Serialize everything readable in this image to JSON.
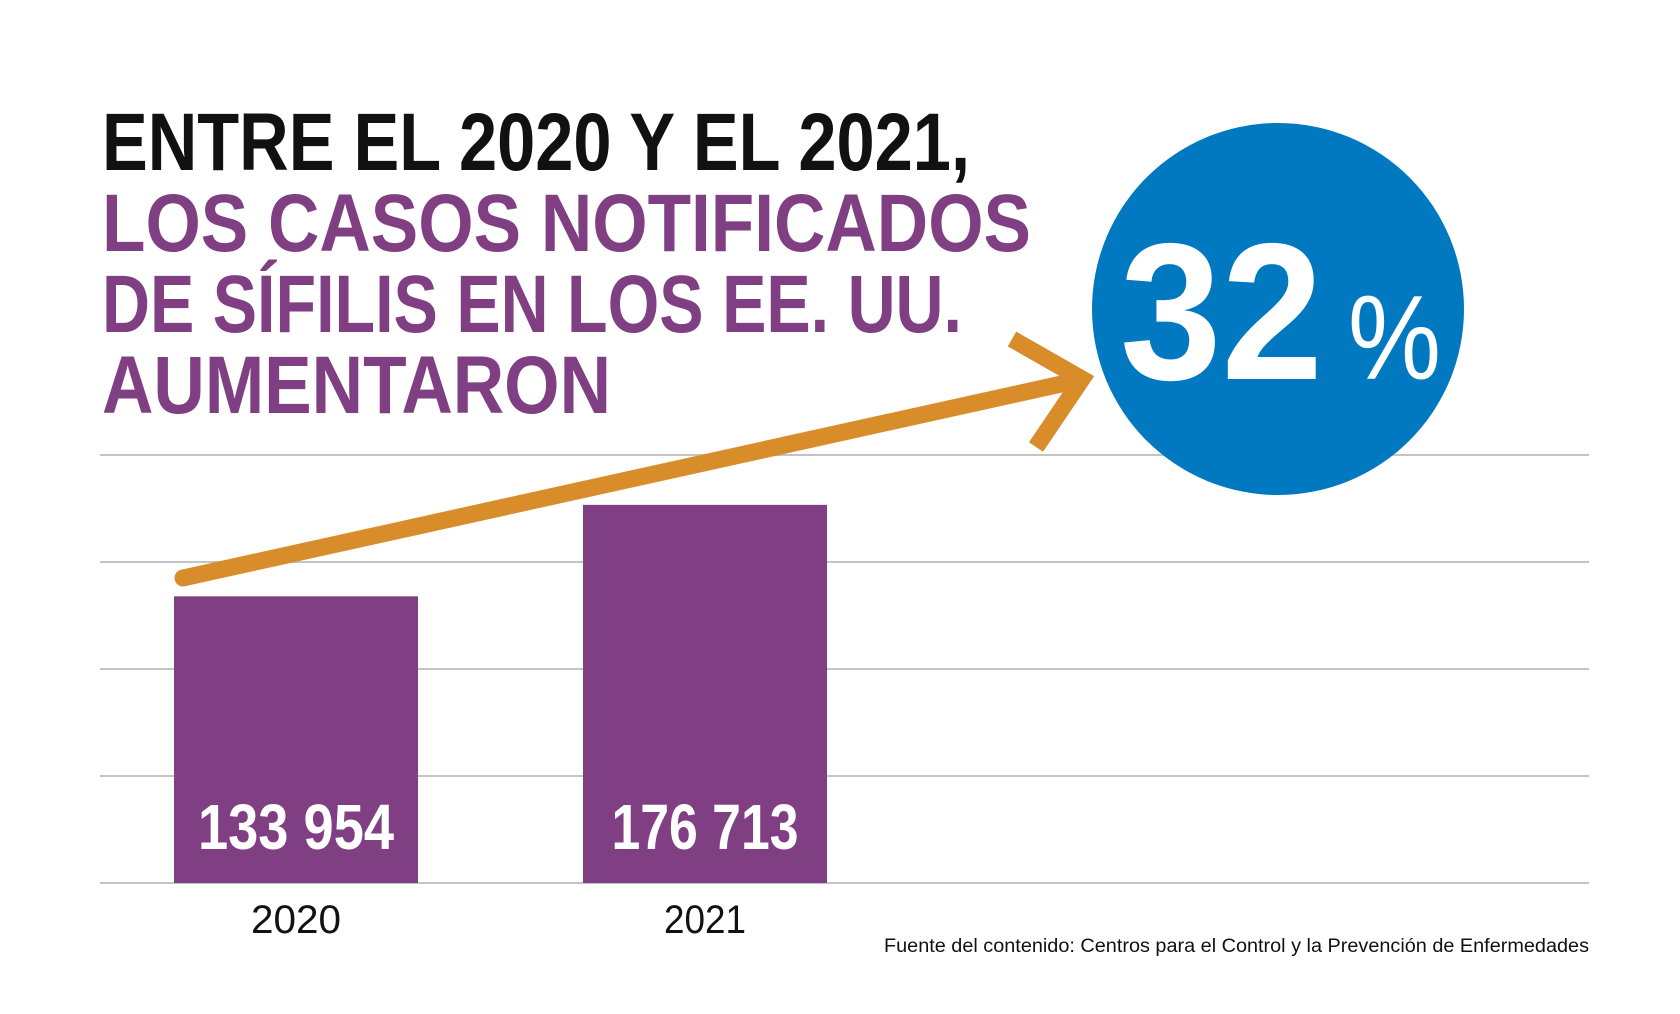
{
  "title": {
    "lines": [
      "ENTRE EL 2020 Y EL 2021,",
      "LOS CASOS NOTIFICADOS",
      "DE SÍFILIS EN LOS EE. UU.",
      "AUMENTARON"
    ],
    "line_colors": [
      "#111111",
      "#7f3f82",
      "#7f3f82",
      "#7f3f82"
    ]
  },
  "callout": {
    "number": "32",
    "unit": "%",
    "color": "#0079c1"
  },
  "source": "Fuente del contenido: Centros para el Control y la Prevención de Enfermedades",
  "chart_data": {
    "type": "bar",
    "categories": [
      "2020",
      "2021"
    ],
    "values": [
      133954,
      176713
    ],
    "data_labels": [
      "133 954",
      "176 713"
    ],
    "ylim": [
      0,
      200000
    ],
    "gridline_step": 50000,
    "grid": true,
    "bar_color": "#7f3f82",
    "arrow_color": "#d88c2a",
    "grid_color": "#c4c4c4"
  }
}
